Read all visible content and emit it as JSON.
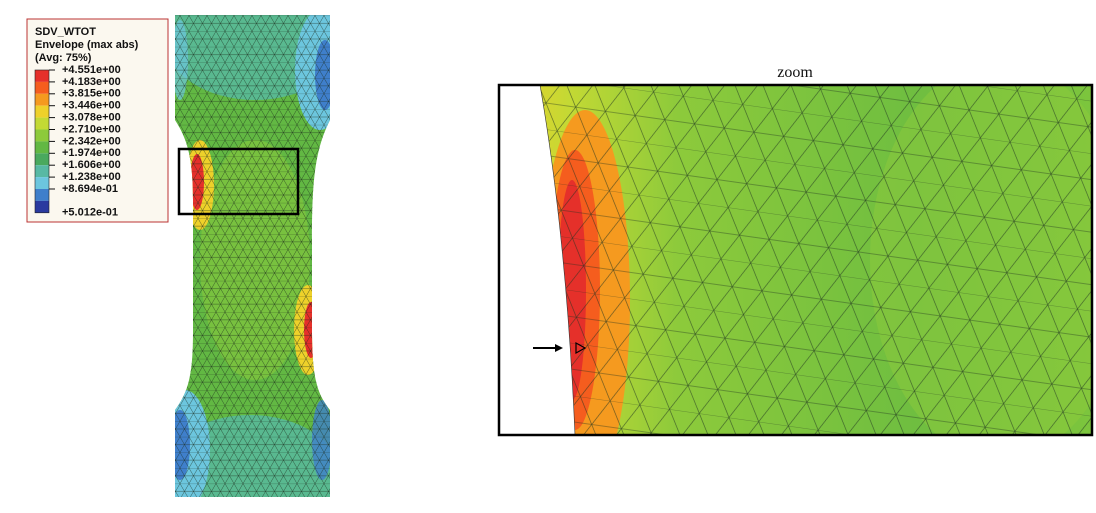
{
  "legend": {
    "title": "SDV_WTOT",
    "subtitle": "Envelope (max abs)",
    "average": "(Avg: 75%)",
    "labels": [
      "+4.551e+00",
      "+4.183e+00",
      "+3.815e+00",
      "+3.446e+00",
      "+3.078e+00",
      "+2.710e+00",
      "+2.342e+00",
      "+1.974e+00",
      "+1.606e+00",
      "+1.238e+00",
      "+8.694e-01",
      "+5.012e-01"
    ],
    "last_label": "+5.012e-01",
    "colors": [
      "#e5302a",
      "#f55d1e",
      "#f59a1f",
      "#eed12a",
      "#c3d934",
      "#8dca3b",
      "#62b843",
      "#4aa95e",
      "#58b9a4",
      "#6cc6de",
      "#3f7fcb",
      "#2a3a9f"
    ]
  },
  "zoom": {
    "label": "zoom"
  }
}
